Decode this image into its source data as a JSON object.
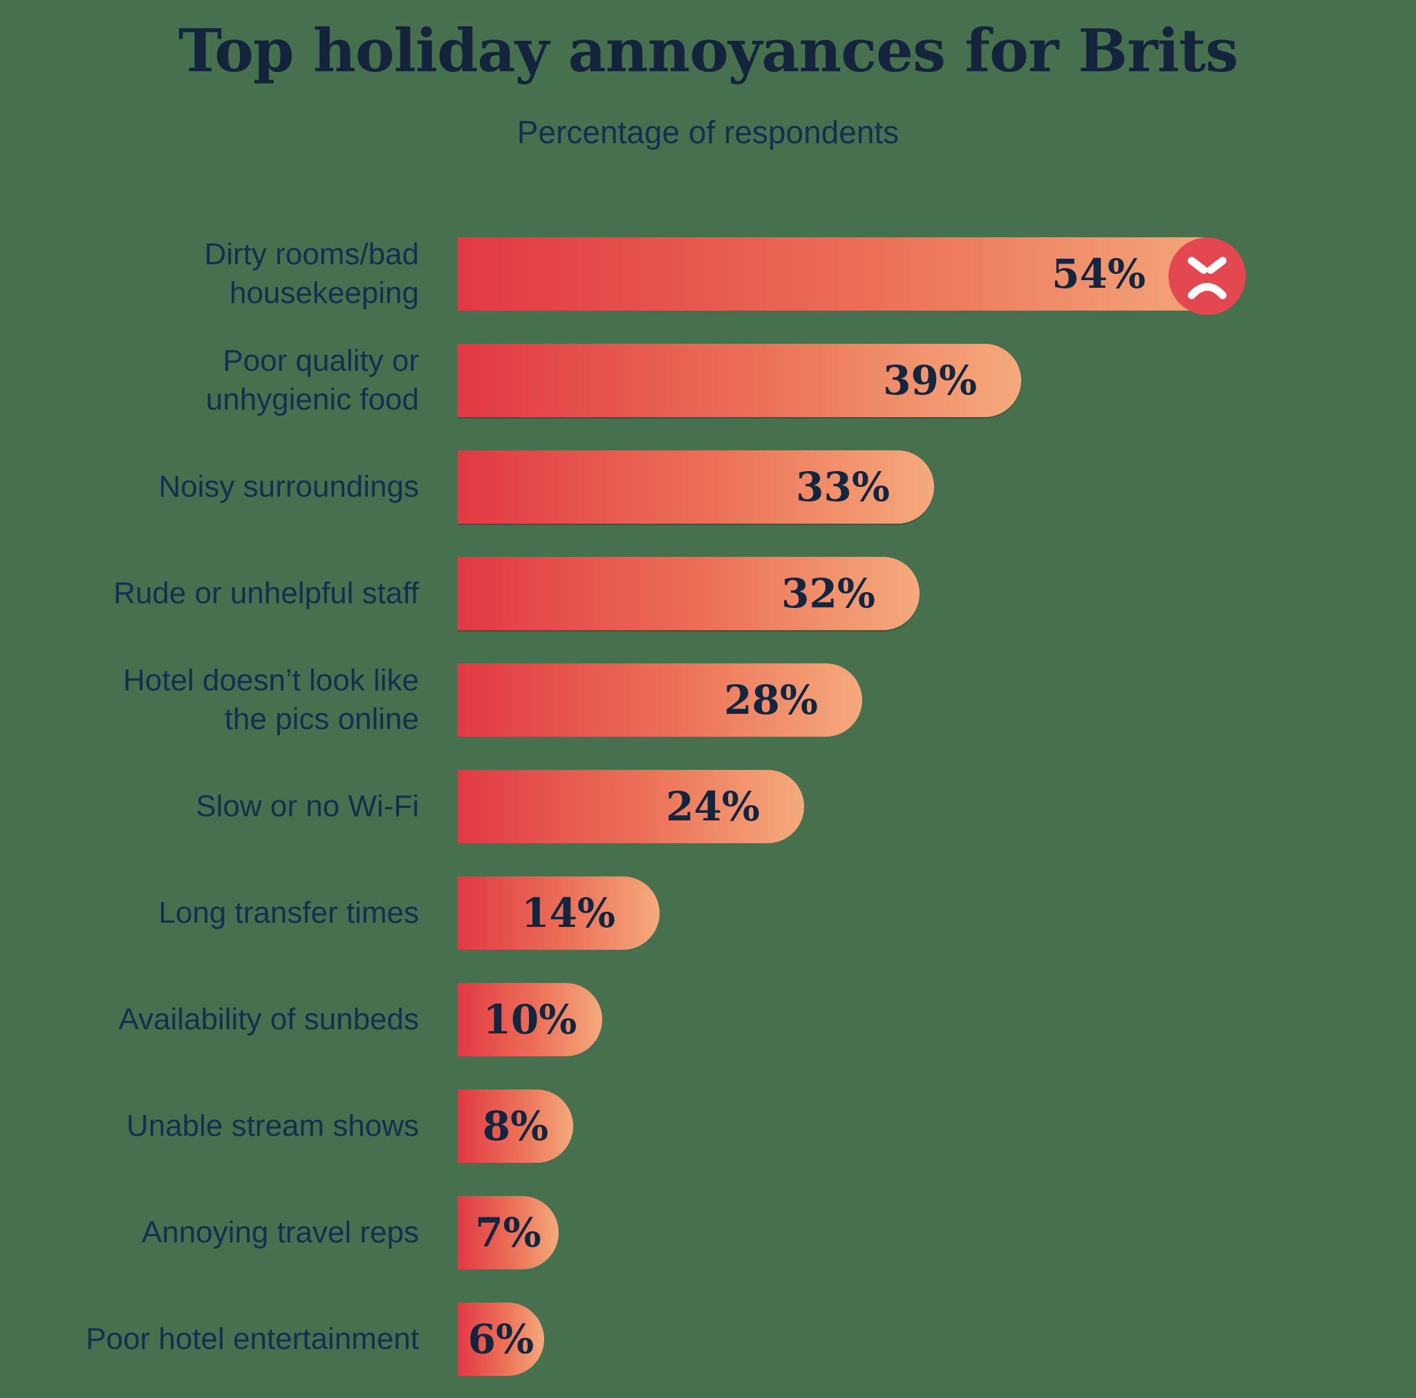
{
  "header": {
    "title": "Top holiday annoyances for Brits",
    "subtitle": "Percentage of respondents"
  },
  "chart_data": {
    "type": "bar",
    "orientation": "horizontal",
    "title": "Top holiday annoyances for Brits",
    "subtitle": "Percentage of respondents",
    "value_unit": "%",
    "scale_max": 54,
    "grid": false,
    "legend": "none",
    "axes": "none (values labeled directly on bars)",
    "categories": [
      "Dirty rooms/bad housekeeping",
      "Poor quality or unhygienic food",
      "Noisy surroundings",
      "Rude or unhelpful staff",
      "Hotel doesn’t look like the pics online",
      "Slow or no Wi-Fi",
      "Long transfer times",
      "Availability of sunbeds",
      "Unable stream shows",
      "Annoying travel reps",
      "Poor hotel entertainment"
    ],
    "values": [
      54,
      39,
      33,
      32,
      28,
      24,
      14,
      10,
      8,
      7,
      6
    ],
    "bars": [
      {
        "label": "Dirty rooms/bad housekeeping",
        "wrapped": "Dirty rooms/bad\nhousekeeping",
        "value": 54,
        "value_label": "54%",
        "emoji": "angry-face"
      },
      {
        "label": "Poor quality or unhygienic food",
        "wrapped": "Poor quality or\nunhygienic food",
        "value": 39,
        "value_label": "39%"
      },
      {
        "label": "Noisy surroundings",
        "wrapped": "Noisy surroundings",
        "value": 33,
        "value_label": "33%"
      },
      {
        "label": "Rude or unhelpful staff",
        "wrapped": "Rude or unhelpful staff",
        "value": 32,
        "value_label": "32%"
      },
      {
        "label": "Hotel doesn’t look like the pics online",
        "wrapped": "Hotel doesn’t look like\nthe pics online",
        "value": 28,
        "value_label": "28%"
      },
      {
        "label": "Slow or no Wi-Fi",
        "wrapped": "Slow or no Wi-Fi",
        "value": 24,
        "value_label": "24%"
      },
      {
        "label": "Long transfer times",
        "wrapped": "Long transfer times",
        "value": 14,
        "value_label": "14%"
      },
      {
        "label": "Availability of sunbeds",
        "wrapped": "Availability of sunbeds",
        "value": 10,
        "value_label": "10%"
      },
      {
        "label": "Unable stream shows",
        "wrapped": "Unable stream shows",
        "value": 8,
        "value_label": "8%"
      },
      {
        "label": "Annoying travel reps",
        "wrapped": "Annoying travel reps",
        "value": 7,
        "value_label": "7%"
      },
      {
        "label": "Poor hotel entertainment",
        "wrapped": "Poor hotel entertainment",
        "value": 6,
        "value_label": "6%"
      }
    ]
  },
  "icons": {
    "angry_face": "angry-face-icon on largest bar"
  },
  "style": {
    "background": "#47714E",
    "bar_gradient_start": "#E23944",
    "bar_gradient_end": "#F5AA7C",
    "emoji_circle_color": "#E34850",
    "emoji_feature_color": "#FFFFFF",
    "title_color": "#14243D",
    "label_color": "#143050",
    "value_color": "#13263F"
  }
}
